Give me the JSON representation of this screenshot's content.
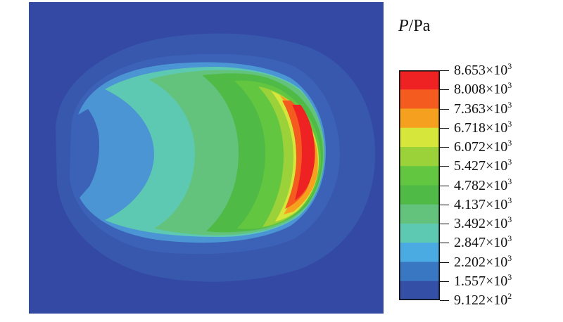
{
  "legend": {
    "title_var": "P",
    "title_unit": "/Pa",
    "levels": [
      {
        "mantissa": "8.653",
        "times": "×10",
        "exp": "3",
        "color": "#ee2222"
      },
      {
        "mantissa": "8.008",
        "times": "×10",
        "exp": "3",
        "color": "#f35b1f"
      },
      {
        "mantissa": "7.363",
        "times": "×10",
        "exp": "3",
        "color": "#f5a01f"
      },
      {
        "mantissa": "6.718",
        "times": "×10",
        "exp": "3",
        "color": "#d6e63b"
      },
      {
        "mantissa": "6.072",
        "times": "×10",
        "exp": "3",
        "color": "#9bd23a"
      },
      {
        "mantissa": "5.427",
        "times": "×10",
        "exp": "3",
        "color": "#62c640"
      },
      {
        "mantissa": "4.782",
        "times": "×10",
        "exp": "3",
        "color": "#4fba46"
      },
      {
        "mantissa": "4.137",
        "times": "×10",
        "exp": "3",
        "color": "#63c37c"
      },
      {
        "mantissa": "3.492",
        "times": "×10",
        "exp": "3",
        "color": "#5ec9b3"
      },
      {
        "mantissa": "2.847",
        "times": "×10",
        "exp": "3",
        "color": "#4aabe2"
      },
      {
        "mantissa": "2.202",
        "times": "×10",
        "exp": "3",
        "color": "#3a77c3"
      },
      {
        "mantissa": "1.557",
        "times": "×10",
        "exp": "3",
        "color": "#3450a6"
      },
      {
        "mantissa": "9.122",
        "times": "×10",
        "exp": "2",
        "color": ""
      }
    ]
  },
  "colors": {
    "background": "#3349a4",
    "band_outer": "#3b62b6",
    "band_core": "#4b95d4"
  }
}
